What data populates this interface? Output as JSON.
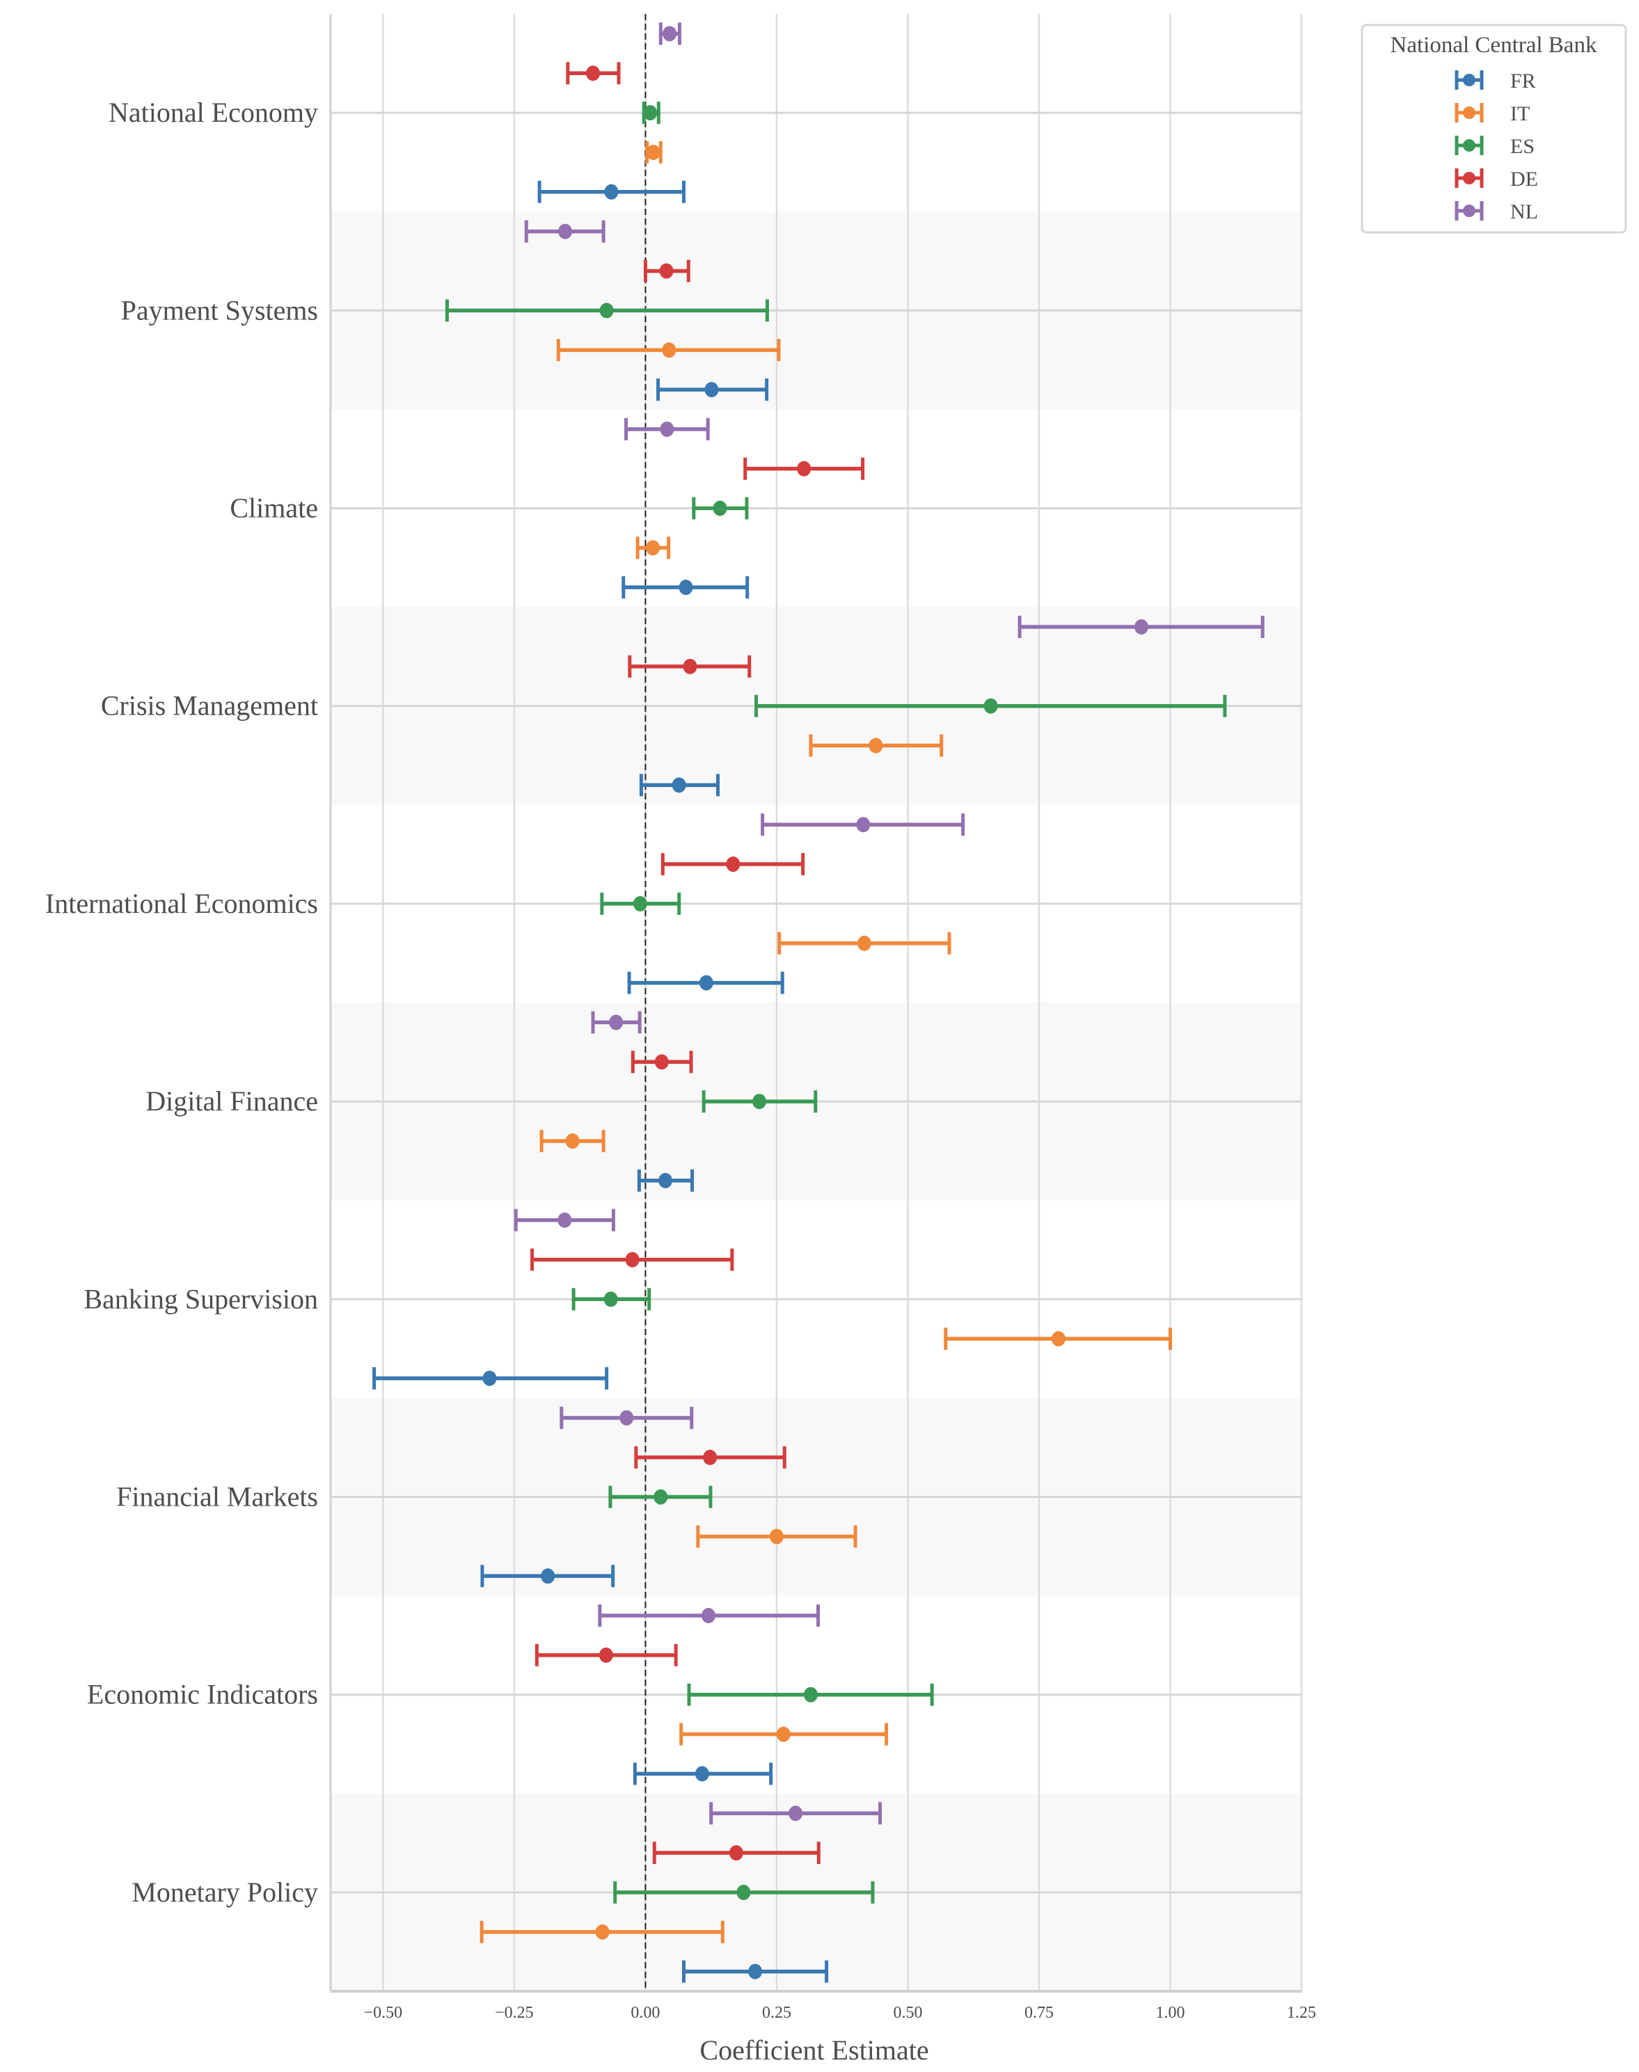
{
  "chart_data": {
    "type": "scatter",
    "subtype": "forest-plot-errorbar",
    "title": "",
    "xlabel": "Coefficient Estimate",
    "ylabel": "",
    "xlim": [
      -0.6,
      1.25
    ],
    "xticks": [
      -0.5,
      -0.25,
      0.0,
      0.25,
      0.5,
      0.75,
      1.0,
      1.25
    ],
    "xtick_labels": [
      "−0.50",
      "−0.25",
      "0.00",
      "0.25",
      "0.50",
      "0.75",
      "1.00",
      "1.25"
    ],
    "grid": true,
    "reference_line": {
      "x": 0,
      "style": "dashed",
      "color": "#222222"
    },
    "band_color": "#f8f8f8",
    "categories": [
      "National Economy",
      "Payment Systems",
      "Climate",
      "Crisis Management",
      "International Economics",
      "Digital Finance",
      "Banking Supervision",
      "Financial Markets",
      "Economic Indicators",
      "Monetary Policy"
    ],
    "legend": {
      "title": "National Central Bank",
      "placement": "outside-top-right",
      "entries": [
        "FR",
        "IT",
        "ES",
        "DE",
        "NL"
      ]
    },
    "series": [
      {
        "name": "FR",
        "color": "#3a78b0",
        "estimate": [
          -0.065,
          0.126,
          0.077,
          0.064,
          0.116,
          0.038,
          -0.297,
          -0.186,
          0.108,
          0.209
        ],
        "lower": [
          -0.202,
          0.024,
          -0.042,
          -0.008,
          -0.031,
          -0.012,
          -0.517,
          -0.311,
          -0.02,
          0.073
        ],
        "upper": [
          0.073,
          0.231,
          0.194,
          0.138,
          0.261,
          0.089,
          -0.074,
          -0.062,
          0.239,
          0.345
        ]
      },
      {
        "name": "IT",
        "color": "#f0883a",
        "estimate": [
          0.015,
          0.045,
          0.014,
          0.439,
          0.417,
          -0.139,
          0.787,
          0.25,
          0.263,
          -0.082
        ],
        "lower": [
          0.003,
          -0.166,
          -0.015,
          0.315,
          0.255,
          -0.198,
          0.572,
          0.1,
          0.068,
          -0.312
        ],
        "upper": [
          0.029,
          0.254,
          0.044,
          0.564,
          0.579,
          -0.08,
          1.0,
          0.4,
          0.459,
          0.147
        ]
      },
      {
        "name": "ES",
        "color": "#3a9a55",
        "estimate": [
          0.009,
          -0.074,
          0.142,
          0.658,
          -0.01,
          0.217,
          -0.066,
          0.029,
          0.315,
          0.187
        ],
        "lower": [
          -0.003,
          -0.378,
          0.092,
          0.211,
          -0.083,
          0.111,
          -0.137,
          -0.067,
          0.083,
          -0.058
        ],
        "upper": [
          0.025,
          0.232,
          0.193,
          1.104,
          0.064,
          0.324,
          0.007,
          0.124,
          0.546,
          0.433
        ]
      },
      {
        "name": "DE",
        "color": "#d43d3d",
        "estimate": [
          -0.1,
          0.04,
          0.302,
          0.085,
          0.167,
          0.031,
          -0.025,
          0.123,
          -0.075,
          0.173
        ],
        "lower": [
          -0.148,
          0.0,
          0.19,
          -0.03,
          0.033,
          -0.024,
          -0.216,
          -0.018,
          -0.207,
          0.017
        ],
        "upper": [
          -0.051,
          0.082,
          0.414,
          0.198,
          0.3,
          0.087,
          0.165,
          0.265,
          0.058,
          0.33
        ]
      },
      {
        "name": "NL",
        "color": "#9370b0",
        "estimate": [
          0.046,
          -0.153,
          0.041,
          0.945,
          0.415,
          -0.056,
          -0.154,
          -0.036,
          0.12,
          0.286
        ],
        "lower": [
          0.029,
          -0.227,
          -0.037,
          0.713,
          0.223,
          -0.1,
          -0.247,
          -0.16,
          -0.087,
          0.125
        ],
        "upper": [
          0.065,
          -0.08,
          0.119,
          1.176,
          0.605,
          -0.011,
          -0.061,
          0.088,
          0.329,
          0.447
        ]
      }
    ]
  }
}
